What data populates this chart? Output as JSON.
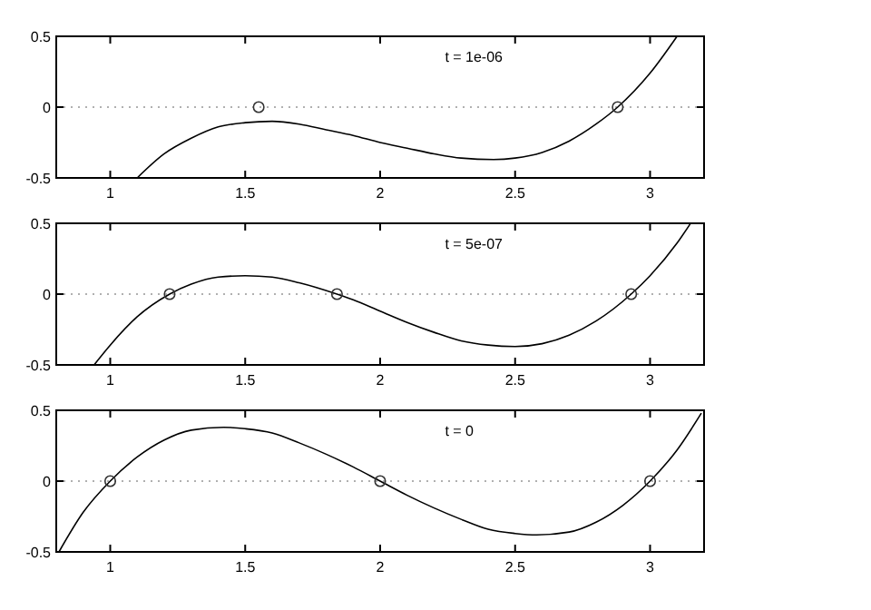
{
  "chart_data": [
    {
      "type": "line",
      "annotations": [
        "t = 1e-06"
      ],
      "xlim": [
        0.8,
        3.2
      ],
      "ylim": [
        -0.5,
        0.5
      ],
      "xticks": [
        1,
        1.5,
        2,
        2.5,
        3
      ],
      "yticks": [
        -0.5,
        0,
        0.5
      ],
      "ref_lines": [
        {
          "axis": "y",
          "value": 0,
          "line_style": "dotted",
          "color": "#b0b0b0"
        }
      ],
      "series": [
        {
          "color": "#000000",
          "line_style": "solid",
          "marker": "none",
          "x": [
            1.1,
            1.2,
            1.3,
            1.4,
            1.5,
            1.6,
            1.7,
            1.8,
            1.9,
            2.0,
            2.1,
            2.2,
            2.3,
            2.42,
            2.5,
            2.6,
            2.7,
            2.8,
            2.88,
            3.0,
            3.1
          ],
          "values": [
            -0.5,
            -0.33,
            -0.22,
            -0.14,
            -0.11,
            -0.1,
            -0.12,
            -0.16,
            -0.2,
            -0.25,
            -0.29,
            -0.33,
            -0.36,
            -0.37,
            -0.36,
            -0.32,
            -0.24,
            -0.12,
            0,
            0.24,
            0.5
          ]
        },
        {
          "type": "scatter",
          "color": "#333333",
          "marker": "circle",
          "x": [
            1.55,
            2.88
          ],
          "values": [
            0,
            0
          ]
        }
      ]
    },
    {
      "type": "line",
      "annotations": [
        "t = 5e-07"
      ],
      "xlim": [
        0.8,
        3.2
      ],
      "ylim": [
        -0.5,
        0.5
      ],
      "xticks": [
        1,
        1.5,
        2,
        2.5,
        3
      ],
      "yticks": [
        -0.5,
        0,
        0.5
      ],
      "ref_lines": [
        {
          "axis": "y",
          "value": 0,
          "line_style": "dotted",
          "color": "#b0b0b0"
        }
      ],
      "series": [
        {
          "color": "#000000",
          "line_style": "solid",
          "marker": "none",
          "x": [
            0.94,
            1.0,
            1.1,
            1.22,
            1.3,
            1.4,
            1.5,
            1.6,
            1.7,
            1.84,
            1.9,
            2.0,
            2.1,
            2.2,
            2.3,
            2.4,
            2.5,
            2.6,
            2.7,
            2.8,
            2.93,
            3.0,
            3.1,
            3.15
          ],
          "values": [
            -0.5,
            -0.36,
            -0.16,
            0,
            0.07,
            0.12,
            0.13,
            0.12,
            0.08,
            0,
            -0.04,
            -0.12,
            -0.2,
            -0.27,
            -0.33,
            -0.36,
            -0.37,
            -0.35,
            -0.29,
            -0.19,
            0,
            0.13,
            0.36,
            0.5
          ]
        },
        {
          "type": "scatter",
          "color": "#333333",
          "marker": "circle",
          "x": [
            1.22,
            1.84,
            2.93
          ],
          "values": [
            0,
            0,
            0
          ]
        }
      ]
    },
    {
      "type": "line",
      "annotations": [
        "t = 0"
      ],
      "xlim": [
        0.8,
        3.2
      ],
      "ylim": [
        -0.5,
        0.5
      ],
      "xticks": [
        1,
        1.5,
        2,
        2.5,
        3
      ],
      "yticks": [
        -0.5,
        0,
        0.5
      ],
      "ref_lines": [
        {
          "axis": "y",
          "value": 0,
          "line_style": "dotted",
          "color": "#b0b0b0"
        }
      ],
      "series": [
        {
          "color": "#000000",
          "line_style": "solid",
          "marker": "none",
          "x": [
            0.81,
            0.9,
            1.0,
            1.1,
            1.2,
            1.3,
            1.42,
            1.5,
            1.6,
            1.7,
            1.8,
            1.9,
            2.0,
            2.1,
            2.2,
            2.3,
            2.4,
            2.5,
            2.58,
            2.7,
            2.8,
            2.9,
            3.0,
            3.1,
            3.19
          ],
          "values": [
            -0.5,
            -0.22,
            0,
            0.17,
            0.29,
            0.36,
            0.38,
            0.37,
            0.34,
            0.27,
            0.19,
            0.1,
            0,
            -0.1,
            -0.19,
            -0.27,
            -0.34,
            -0.37,
            -0.38,
            -0.36,
            -0.29,
            -0.17,
            0,
            0.22,
            0.48
          ]
        },
        {
          "type": "scatter",
          "color": "#333333",
          "marker": "circle",
          "x": [
            1.0,
            2.0,
            3.0
          ],
          "values": [
            0,
            0,
            0
          ]
        }
      ]
    }
  ]
}
